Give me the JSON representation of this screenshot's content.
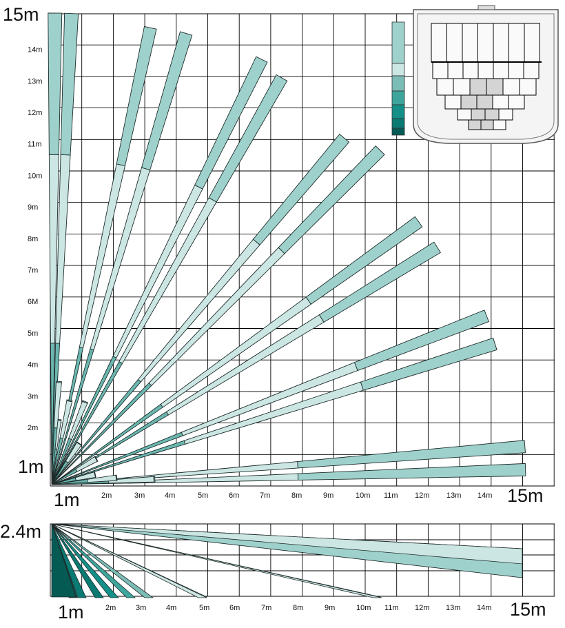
{
  "top_view": {
    "corner_top_left": "15m",
    "origin_left": "1m",
    "origin_bottom": "1m",
    "corner_bottom_right": "15m",
    "y_ticks": [
      "2m",
      "3m",
      "4m",
      "5m",
      "6M",
      "7m",
      "8m",
      "9m",
      "10m",
      "11m",
      "12m",
      "13m",
      "14m"
    ],
    "x_ticks": [
      "2m",
      "3m",
      "4m",
      "5m",
      "6m",
      "7m",
      "8m",
      "9m",
      "10m",
      "11m",
      "12m",
      "13m",
      "14m"
    ]
  },
  "side_view": {
    "height_label": "2.4m",
    "origin_bottom": "1m",
    "corner_bottom_right": "15m",
    "x_ticks": [
      "2m",
      "3m",
      "4m",
      "5m",
      "6m",
      "7m",
      "8m",
      "9m",
      "10m",
      "11m",
      "12m",
      "13m",
      "14m"
    ]
  },
  "legend": {
    "swatch_colors": [
      "#9fd1cc",
      "#cce6e3",
      "#7cbcb6",
      "#3ea59d",
      "#159089",
      "#0a7a73",
      "#065a54"
    ]
  },
  "colors": {
    "beam_far": "#9fd1cc",
    "beam_mid": "#cce6e3",
    "beam_near": "#6bb7b0",
    "beam_dark": "#0b7d76",
    "grid": "#000000"
  }
}
